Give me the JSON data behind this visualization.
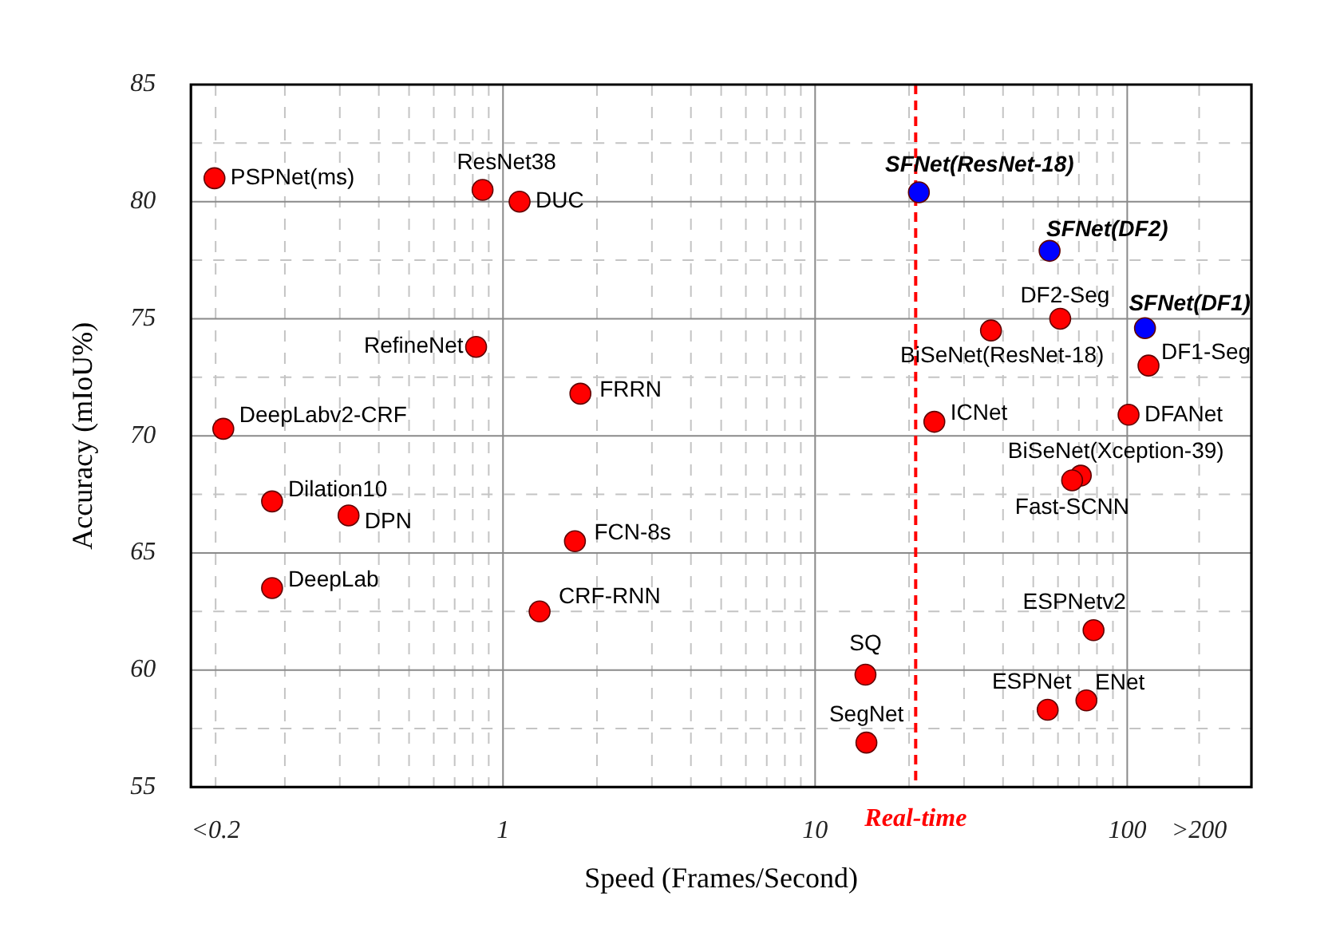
{
  "chart_data": {
    "type": "scatter",
    "xlabel": "Speed (Frames/Second)",
    "ylabel": "Accuracy (mIoU%)",
    "log": "x",
    "grid": true,
    "legend": false,
    "marker": "circle",
    "xlim": [
      0.1,
      250
    ],
    "ylim": [
      55,
      85
    ],
    "xticks": [
      {
        "value": 0.12,
        "label": "<0.2"
      },
      {
        "value": 0.2,
        "label": null
      },
      {
        "value": 0.3,
        "label": null
      },
      {
        "value": 0.4,
        "label": null
      },
      {
        "value": 0.5,
        "label": null
      },
      {
        "value": 0.6,
        "label": null
      },
      {
        "value": 0.7,
        "label": null
      },
      {
        "value": 0.8,
        "label": null
      },
      {
        "value": 0.9,
        "label": null
      },
      1,
      {
        "value": 2,
        "label": null
      },
      {
        "value": 3,
        "label": null
      },
      {
        "value": 4,
        "label": null
      },
      {
        "value": 5,
        "label": null
      },
      {
        "value": 6,
        "label": null
      },
      {
        "value": 7,
        "label": null
      },
      {
        "value": 8,
        "label": null
      },
      {
        "value": 9,
        "label": null
      },
      10,
      {
        "value": 20,
        "label": null
      },
      {
        "value": 30,
        "label": null
      },
      {
        "value": 40,
        "label": null
      },
      {
        "value": 50,
        "label": null
      },
      {
        "value": 60,
        "label": null
      },
      {
        "value": 70,
        "label": null
      },
      {
        "value": 80,
        "label": null
      },
      {
        "value": 90,
        "label": null
      },
      100,
      {
        "value": 170,
        "label": ">200"
      }
    ],
    "yticks": [
      55,
      {
        "value": 57.5,
        "label": null
      },
      60,
      {
        "value": 62.5,
        "label": null
      },
      65,
      {
        "value": 67.5,
        "label": null
      },
      70,
      {
        "value": 72.5,
        "label": null
      },
      75,
      {
        "value": 77.5,
        "label": null
      },
      80,
      {
        "value": 82.5,
        "label": null
      },
      85
    ],
    "series": [
      {
        "color": "#ff0000",
        "x": [
          0.119,
          0.86,
          1.13,
          0.82,
          1.77,
          0.127,
          0.182,
          0.32,
          0.182,
          1.7,
          1.31,
          61,
          36.6,
          117,
          24.1,
          101,
          71,
          66.6,
          78,
          14.5,
          74,
          55.6,
          14.6
        ],
        "values": [
          81.0,
          80.5,
          80.0,
          73.8,
          71.8,
          70.3,
          67.2,
          66.6,
          63.5,
          65.5,
          62.5,
          75.0,
          74.5,
          73.0,
          70.6,
          70.9,
          68.3,
          68.1,
          61.7,
          59.8,
          58.7,
          58.3,
          56.9
        ]
      },
      {
        "color": "#0000ff",
        "x": [
          21.5,
          56.4,
          114
        ],
        "values": [
          80.4,
          77.9,
          74.6
        ]
      }
    ],
    "ref_lines": [
      {
        "axis": "x",
        "value": 21,
        "label": "Real-time",
        "color": "#ff0000",
        "line_style": "dashed"
      }
    ],
    "annotations": [
      {
        "text": "PSPNet(ms)",
        "x": 0.119,
        "y": 81.0
      },
      {
        "text": "ResNet38",
        "x": 0.86,
        "y": 80.5
      },
      {
        "text": "DUC",
        "x": 1.13,
        "y": 80.0
      },
      {
        "text": "RefineNet",
        "x": 0.82,
        "y": 73.8
      },
      {
        "text": "FRRN",
        "x": 1.77,
        "y": 71.8
      },
      {
        "text": "DeepLabv2-CRF",
        "x": 0.127,
        "y": 70.3
      },
      {
        "text": "Dilation10",
        "x": 0.182,
        "y": 67.2
      },
      {
        "text": "DPN",
        "x": 0.32,
        "y": 66.6
      },
      {
        "text": "DeepLab",
        "x": 0.182,
        "y": 63.5
      },
      {
        "text": "FCN-8s",
        "x": 1.7,
        "y": 65.5
      },
      {
        "text": "CRF-RNN",
        "x": 1.31,
        "y": 62.5
      },
      {
        "text": "SFNet(ResNet-18)",
        "x": 21.5,
        "y": 80.4
      },
      {
        "text": "SFNet(DF2)",
        "x": 56.4,
        "y": 77.9
      },
      {
        "text": "SFNet(DF1)",
        "x": 114,
        "y": 74.6
      },
      {
        "text": "DF2-Seg",
        "x": 61,
        "y": 75.0
      },
      {
        "text": "BiSeNet(ResNet-18)",
        "x": 36.6,
        "y": 74.5
      },
      {
        "text": "DF1-Seg",
        "x": 117,
        "y": 73.0
      },
      {
        "text": "ICNet",
        "x": 24.1,
        "y": 70.6
      },
      {
        "text": "DFANet",
        "x": 101,
        "y": 70.9
      },
      {
        "text": "BiSeNet(Xception-39)",
        "x": 71,
        "y": 68.3
      },
      {
        "text": "Fast-SCNN",
        "x": 66.6,
        "y": 68.1
      },
      {
        "text": "ESPNetv2",
        "x": 78,
        "y": 61.7
      },
      {
        "text": "SQ",
        "x": 14.5,
        "y": 59.8
      },
      {
        "text": "ENet",
        "x": 74,
        "y": 58.7
      },
      {
        "text": "ESPNet",
        "x": 55.6,
        "y": 58.3
      },
      {
        "text": "SegNet",
        "x": 14.6,
        "y": 56.9
      }
    ]
  }
}
